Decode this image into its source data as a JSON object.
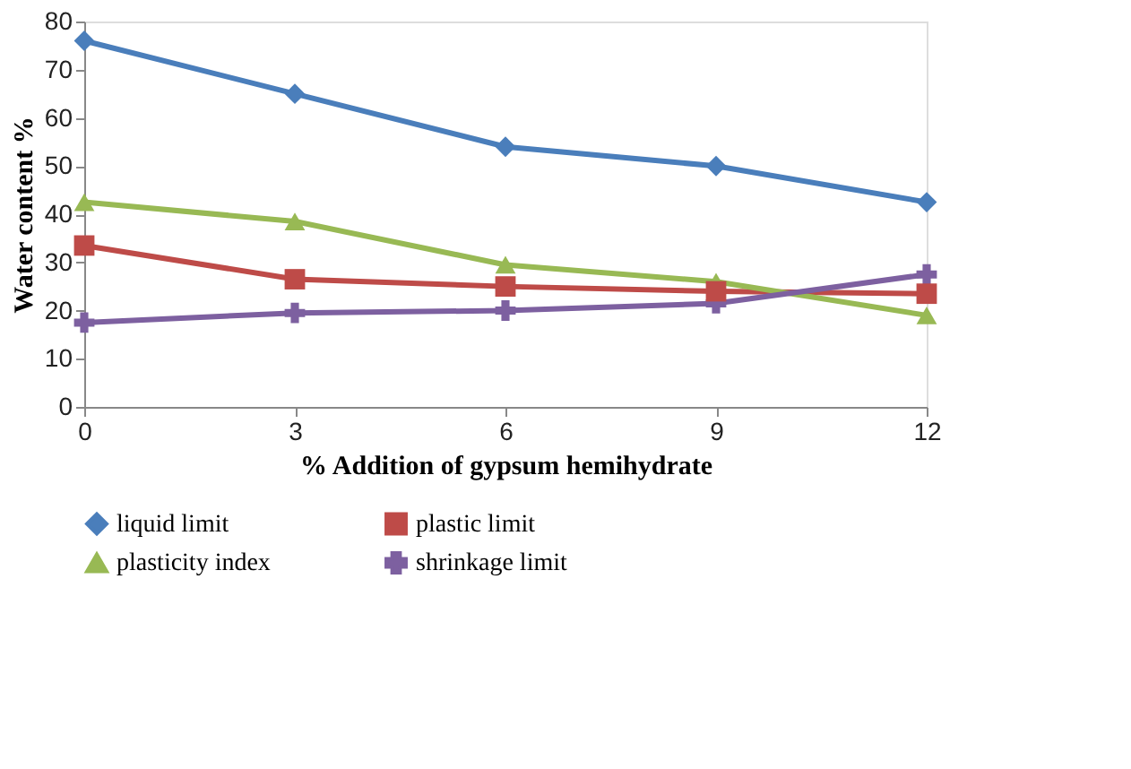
{
  "chart_data": {
    "type": "line",
    "xlabel": "%  Addition of gypsum hemihydrate",
    "ylabel": "Water content %",
    "x": [
      0,
      3,
      6,
      9,
      12
    ],
    "xlim": [
      0,
      12
    ],
    "xticks": [
      0,
      3,
      6,
      9,
      12
    ],
    "ylim": [
      0,
      80
    ],
    "yticks": [
      0,
      10,
      20,
      30,
      40,
      50,
      60,
      70,
      80
    ],
    "grid": false,
    "legend": "bottom",
    "line_style": "solid",
    "series": [
      {
        "name": "liquid limit",
        "color": "#4a7ebb",
        "marker": "diamond",
        "values": [
          76,
          65,
          54,
          50,
          42.5
        ]
      },
      {
        "name": "plastic limit",
        "color": "#be4b48",
        "marker": "square",
        "values": [
          33.5,
          26.5,
          25,
          24,
          23.5
        ]
      },
      {
        "name": "plasticity index",
        "color": "#98b954",
        "marker": "triangle",
        "values": [
          42.5,
          38.5,
          29.5,
          26,
          19
        ]
      },
      {
        "name": "shrinkage limit",
        "color": "#7d60a0",
        "marker": "cross",
        "values": [
          17.5,
          19.5,
          20,
          21.5,
          27.5
        ]
      }
    ]
  }
}
